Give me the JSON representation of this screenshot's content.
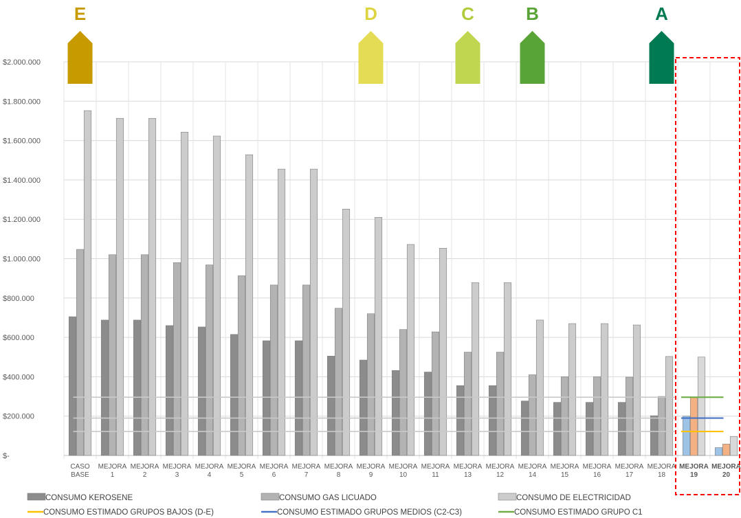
{
  "chart_data": {
    "type": "bar",
    "categories": [
      [
        "CASO",
        "BASE"
      ],
      [
        "MEJORA",
        "1"
      ],
      [
        "MEJORA",
        "2"
      ],
      [
        "MEJORA",
        "3"
      ],
      [
        "MEJORA",
        "4"
      ],
      [
        "MEJORA",
        "5"
      ],
      [
        "MEJORA",
        "6"
      ],
      [
        "MEJORA",
        "7"
      ],
      [
        "MEJORA",
        "8"
      ],
      [
        "MEJORA",
        "9"
      ],
      [
        "MEJORA",
        "10"
      ],
      [
        "MEJORA",
        "11"
      ],
      [
        "MEJORA",
        "13"
      ],
      [
        "MEJORA",
        "12"
      ],
      [
        "MEJORA",
        "14"
      ],
      [
        "MEJORA",
        "15"
      ],
      [
        "MEJORA",
        "16"
      ],
      [
        "MEJORA",
        "17"
      ],
      [
        "MEJORA",
        "18"
      ],
      [
        "MEJORA",
        "19"
      ],
      [
        "MEJORA",
        "20"
      ]
    ],
    "bold_categories": [
      19,
      20
    ],
    "series": [
      {
        "name": "CONSUMO KEROSENE",
        "color": "#8c8c8c",
        "values": [
          705000,
          688000,
          688000,
          660000,
          653000,
          615000,
          583000,
          583000,
          505000,
          485000,
          432000,
          424000,
          355000,
          355000,
          277000,
          270000,
          270000,
          270000,
          202000,
          200000,
          40000
        ]
      },
      {
        "name": "CONSUMO GAS LICUADO",
        "color": "#b3b3b3",
        "values": [
          1047000,
          1020000,
          1020000,
          980000,
          968000,
          913000,
          866000,
          866000,
          748000,
          720000,
          640000,
          628000,
          525000,
          525000,
          410000,
          400000,
          400000,
          398000,
          300000,
          295000,
          58000
        ]
      },
      {
        "name": "CONSUMO DE ELECTRICIDAD",
        "color": "#cccccc",
        "values": [
          1752000,
          1713000,
          1713000,
          1643000,
          1623000,
          1528000,
          1455000,
          1455000,
          1252000,
          1210000,
          1072000,
          1053000,
          878000,
          878000,
          688000,
          670000,
          670000,
          663000,
          503000,
          500000,
          97000
        ]
      }
    ],
    "highlight_colors": {
      "CONSUMO KEROSENE": "#9dc3e6",
      "CONSUMO GAS LICUADO": "#f4b183",
      "CONSUMO DE ELECTRICIDAD": "#d9d9d9"
    },
    "reference_lines": [
      {
        "name": "CONSUMO ESTIMADO GRUPOS BAJOS (D-E)",
        "value": 122000,
        "color": "#ffc000"
      },
      {
        "name": "CONSUMO ESTIMADO GRUPOS MEDIOS (C2-C3)",
        "value": 190000,
        "color": "#4472c4"
      },
      {
        "name": "CONSUMO ESTIMADO GRUPO C1",
        "value": 296000,
        "color": "#70ad47"
      }
    ],
    "y_ticks": [
      {
        "value": 0,
        "label": "$-"
      },
      {
        "value": 200000,
        "label": "$200.000"
      },
      {
        "value": 400000,
        "label": "$400.000"
      },
      {
        "value": 600000,
        "label": "$600.000"
      },
      {
        "value": 800000,
        "label": "$800.000"
      },
      {
        "value": 1000000,
        "label": "$1.000.000"
      },
      {
        "value": 1200000,
        "label": "$1.200.000"
      },
      {
        "value": 1400000,
        "label": "$1.400.000"
      },
      {
        "value": 1600000,
        "label": "$1.600.000"
      },
      {
        "value": 1800000,
        "label": "$1.800.000"
      },
      {
        "value": 2000000,
        "label": "$2.000.000"
      }
    ],
    "ylim": [
      0,
      2000000
    ],
    "grid": true,
    "grade_markers": [
      {
        "letter": "E",
        "category": 0,
        "color": "#c79a00",
        "text_color": "#c79a00"
      },
      {
        "letter": "D",
        "category": 9,
        "color": "#e5dc55",
        "text_color": "#dcd440"
      },
      {
        "letter": "C",
        "category": 12,
        "color": "#c0d651",
        "text_color": "#b0cc3a"
      },
      {
        "letter": "B",
        "category": 14,
        "color": "#59a436",
        "text_color": "#59a436"
      },
      {
        "letter": "A",
        "category": 18,
        "color": "#007a52",
        "text_color": "#007a52"
      }
    ],
    "highlight_box": {
      "from_category": 19,
      "to_category": 20,
      "color": "#ff0000"
    },
    "legend": [
      {
        "kind": "bar",
        "series": 0,
        "label": "CONSUMO KEROSENE"
      },
      {
        "kind": "bar",
        "series": 1,
        "label": "CONSUMO GAS LICUADO"
      },
      {
        "kind": "bar",
        "series": 2,
        "label": "CONSUMO DE ELECTRICIDAD"
      },
      {
        "kind": "line",
        "ref": 0,
        "label": "CONSUMO ESTIMADO GRUPOS BAJOS (D-E)"
      },
      {
        "kind": "line",
        "ref": 1,
        "label": "CONSUMO ESTIMADO GRUPOS MEDIOS (C2-C3)"
      },
      {
        "kind": "line",
        "ref": 2,
        "label": "CONSUMO ESTIMADO GRUPO C1"
      }
    ]
  }
}
